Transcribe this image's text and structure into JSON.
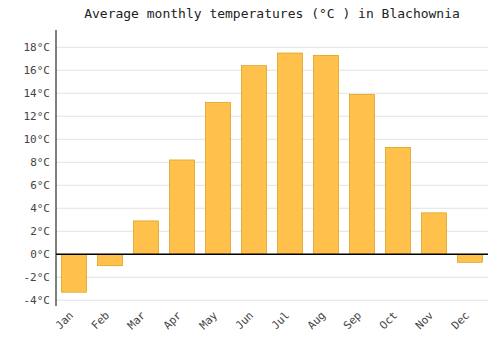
{
  "chart_data": {
    "type": "bar",
    "title": "Average monthly temperatures (°C ) in Blachownia",
    "categories": [
      "Jan",
      "Feb",
      "Mar",
      "Apr",
      "May",
      "Jun",
      "Jul",
      "Aug",
      "Sep",
      "Oct",
      "Nov",
      "Dec"
    ],
    "values": [
      -3.3,
      -1.0,
      2.9,
      8.2,
      13.2,
      16.4,
      17.5,
      17.3,
      13.9,
      9.3,
      3.6,
      -0.7
    ],
    "color": "#FFC04C",
    "ylim": [
      -4.5,
      19.5
    ],
    "yticks": [
      {
        "value": -4,
        "label": "-4°C"
      },
      {
        "value": -2,
        "label": "-2°C"
      },
      {
        "value": 0,
        "label": "0°C"
      },
      {
        "value": 2,
        "label": "2°C"
      },
      {
        "value": 4,
        "label": "4°C"
      },
      {
        "value": 6,
        "label": "6°C"
      },
      {
        "value": 8,
        "label": "8°C"
      },
      {
        "value": 10,
        "label": "10°C"
      },
      {
        "value": 12,
        "label": "12°C"
      },
      {
        "value": 14,
        "label": "14°C"
      },
      {
        "value": 16,
        "label": "16°C"
      },
      {
        "value": 18,
        "label": "18°C"
      }
    ],
    "grid": true
  }
}
